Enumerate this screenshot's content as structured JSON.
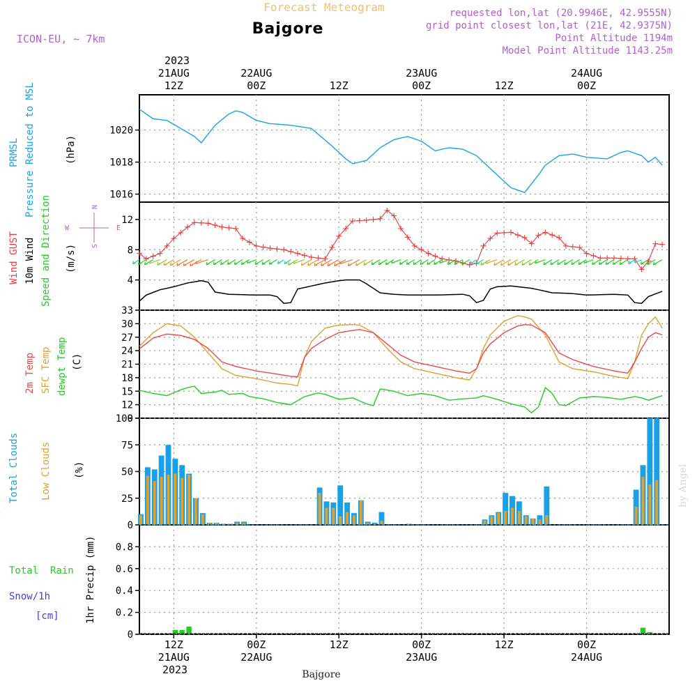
{
  "header": {
    "product": "Forecast Meteogram",
    "location": "Bajgore",
    "model": "ICON-EU, ~ 7km",
    "requested": "requested lon,lat (20.9946E, 42.9555N)",
    "grid_point": "grid point closest lon,lat (21E, 42.9375N)",
    "altitude": "Point Altitude 1194m",
    "model_altitude": "Model Point Altitude 1143.25m",
    "credit": "by Angel",
    "footer_location": "Bajgore"
  },
  "time_axis": {
    "top_year": "2023",
    "ticks": [
      {
        "h": 0,
        "day": "21AUG",
        "hour": "12Z"
      },
      {
        "h": 12,
        "day": "22AUG",
        "hour": "00Z"
      },
      {
        "h": 24,
        "day": "",
        "hour": "12Z"
      },
      {
        "h": 36,
        "day": "23AUG",
        "hour": "00Z"
      },
      {
        "h": 48,
        "day": "",
        "hour": "12Z"
      },
      {
        "h": 60,
        "day": "24AUG",
        "hour": "00Z"
      }
    ],
    "bottom_ticks": [
      {
        "h": 0,
        "hour": "12Z",
        "day": "21AUG"
      },
      {
        "h": 12,
        "hour": "00Z",
        "day": "22AUG"
      },
      {
        "h": 24,
        "hour": "12Z",
        "day": ""
      },
      {
        "h": 36,
        "hour": "00Z",
        "day": "23AUG"
      },
      {
        "h": 48,
        "hour": "12Z",
        "day": ""
      },
      {
        "h": 60,
        "hour": "00Z",
        "day": "24AUG"
      }
    ],
    "bottom_year": "2023",
    "start_hour": -5,
    "end_hour": 71,
    "step_hours": 1
  },
  "labels": {
    "p1_a": "PRMSL",
    "p1_b": "Pressure Reduced to MSL",
    "p1_unit": "(hPa)",
    "p2_gust": "Wind GUST",
    "p2_wind": "10m Wind",
    "p2_dir": "Speed and Direction",
    "p2_unit": "(m/s)",
    "compass_n": "N",
    "compass_s": "S",
    "compass_e": "E",
    "compass_w": "W",
    "p3_t2m": "2m Temp",
    "p3_sfc": "SFC Temp",
    "p3_dew": "dewpt Temp",
    "p3_unit": "(C)",
    "p4_total": "Total Clouds",
    "p4_low": "Low Clouds",
    "p4_unit": "(%)",
    "p5_rain": "Total  Rain",
    "p5_snow": "Snow/1h",
    "p5_snow_unit": "[cm]",
    "p5_axis": "1hr Precip (mm)"
  },
  "colors": {
    "pressure": "#1aa0e6",
    "gust": "#e83c3c",
    "wind": "#000000",
    "t2m": "#e84848",
    "sfc": "#e0a030",
    "dew": "#22cc22",
    "total_clouds": "#1aa0e6",
    "low_clouds": "#e0a030",
    "rain": "#22cc22",
    "snow": "#4040e0",
    "model_text": "#b060d0",
    "product_text": "#f0c070"
  },
  "chart_data": [
    {
      "type": "line",
      "name": "pressure",
      "ylim": [
        1015.5,
        1022.2
      ],
      "yticks": [
        1016,
        1018,
        1020
      ],
      "knots": [
        [
          -5,
          1021.3
        ],
        [
          -3,
          1020.7
        ],
        [
          -1,
          1020.6
        ],
        [
          1,
          1020.1
        ],
        [
          3,
          1019.6
        ],
        [
          4,
          1019.2
        ],
        [
          6,
          1020.3
        ],
        [
          8,
          1021.0
        ],
        [
          9,
          1021.2
        ],
        [
          10,
          1021.1
        ],
        [
          12,
          1020.6
        ],
        [
          14,
          1020.4
        ],
        [
          17,
          1020.3
        ],
        [
          20,
          1020.1
        ],
        [
          23,
          1019.0
        ],
        [
          25,
          1018.2
        ],
        [
          26,
          1017.9
        ],
        [
          28,
          1018.1
        ],
        [
          30,
          1018.9
        ],
        [
          32,
          1019.4
        ],
        [
          34,
          1019.6
        ],
        [
          36,
          1019.3
        ],
        [
          38,
          1018.7
        ],
        [
          40,
          1018.9
        ],
        [
          42,
          1018.8
        ],
        [
          44,
          1018.4
        ],
        [
          46,
          1017.6
        ],
        [
          48,
          1016.8
        ],
        [
          49,
          1016.4
        ],
        [
          51,
          1016.1
        ],
        [
          53,
          1017.2
        ],
        [
          54,
          1017.8
        ],
        [
          56,
          1018.4
        ],
        [
          58,
          1018.5
        ],
        [
          60,
          1018.3
        ],
        [
          63,
          1018.2
        ],
        [
          65,
          1018.6
        ],
        [
          66,
          1018.7
        ],
        [
          68,
          1018.4
        ],
        [
          69,
          1018.0
        ],
        [
          70,
          1018.3
        ],
        [
          71,
          1017.8
        ]
      ]
    },
    {
      "type": "line",
      "name": "wind_gust_and_speed",
      "ylim": [
        0,
        14.3
      ],
      "yticks": [
        4,
        8,
        12
      ],
      "gust_knots": [
        [
          -5,
          7.5
        ],
        [
          -4,
          6.8
        ],
        [
          -2,
          7.5
        ],
        [
          0,
          9.5
        ],
        [
          2,
          11.0
        ],
        [
          3,
          11.6
        ],
        [
          5,
          11.5
        ],
        [
          7,
          11.0
        ],
        [
          9,
          10.8
        ],
        [
          10,
          9.5
        ],
        [
          12,
          8.5
        ],
        [
          14,
          8.2
        ],
        [
          16,
          8.0
        ],
        [
          18,
          7.5
        ],
        [
          20,
          7.0
        ],
        [
          22,
          6.8
        ],
        [
          24,
          9.8
        ],
        [
          26,
          11.8
        ],
        [
          28,
          11.9
        ],
        [
          30,
          12.1
        ],
        [
          31,
          13.2
        ],
        [
          32,
          12.5
        ],
        [
          33,
          10.8
        ],
        [
          35,
          8.5
        ],
        [
          37,
          7.5
        ],
        [
          39,
          6.8
        ],
        [
          41,
          6.5
        ],
        [
          43,
          6.0
        ],
        [
          44,
          6.2
        ],
        [
          45,
          8.5
        ],
        [
          46,
          9.5
        ],
        [
          47,
          10.2
        ],
        [
          49,
          10.3
        ],
        [
          51,
          9.6
        ],
        [
          52,
          8.8
        ],
        [
          53,
          9.9
        ],
        [
          54,
          10.3
        ],
        [
          56,
          9.6
        ],
        [
          57,
          8.5
        ],
        [
          59,
          8.3
        ],
        [
          60,
          7.5
        ],
        [
          62,
          6.9
        ],
        [
          64,
          6.9
        ],
        [
          66,
          6.8
        ],
        [
          67,
          6.8
        ],
        [
          68,
          5.4
        ],
        [
          69,
          6.5
        ],
        [
          70,
          8.8
        ],
        [
          71,
          8.7
        ]
      ],
      "wind_knots": [
        [
          -5,
          1.2
        ],
        [
          -4,
          2.0
        ],
        [
          -2,
          2.7
        ],
        [
          0,
          3.1
        ],
        [
          2,
          3.6
        ],
        [
          4,
          3.9
        ],
        [
          5,
          3.7
        ],
        [
          6,
          2.4
        ],
        [
          8,
          2.1
        ],
        [
          12,
          2.0
        ],
        [
          14,
          2.0
        ],
        [
          15,
          1.8
        ],
        [
          16,
          0.9
        ],
        [
          17,
          1.0
        ],
        [
          18,
          2.8
        ],
        [
          20,
          3.2
        ],
        [
          22,
          3.6
        ],
        [
          24,
          3.9
        ],
        [
          25,
          4.0
        ],
        [
          27,
          4.0
        ],
        [
          28,
          3.5
        ],
        [
          30,
          2.3
        ],
        [
          32,
          2.1
        ],
        [
          34,
          2.0
        ],
        [
          38,
          2.0
        ],
        [
          42,
          2.1
        ],
        [
          43,
          1.9
        ],
        [
          44,
          1.0
        ],
        [
          45,
          1.3
        ],
        [
          46,
          2.8
        ],
        [
          47,
          3.1
        ],
        [
          49,
          3.2
        ],
        [
          52,
          2.9
        ],
        [
          55,
          2.3
        ],
        [
          58,
          2.2
        ],
        [
          60,
          2.0
        ],
        [
          64,
          2.1
        ],
        [
          66,
          2.0
        ],
        [
          67,
          1.0
        ],
        [
          68,
          0.9
        ],
        [
          69,
          1.8
        ],
        [
          71,
          2.5
        ]
      ]
    },
    {
      "type": "line",
      "name": "temperatures",
      "ylim": [
        9,
        33
      ],
      "yticks": [
        9,
        12,
        15,
        18,
        21,
        24,
        27,
        30,
        33
      ],
      "t2m_knots": [
        [
          -5,
          24.4
        ],
        [
          -3,
          26.8
        ],
        [
          -1,
          27.7
        ],
        [
          1,
          27.4
        ],
        [
          3,
          26.5
        ],
        [
          5,
          24.5
        ],
        [
          7,
          21.5
        ],
        [
          9,
          20.5
        ],
        [
          12,
          19.5
        ],
        [
          15,
          18.8
        ],
        [
          17,
          18.3
        ],
        [
          18,
          18.2
        ],
        [
          19,
          22.5
        ],
        [
          20,
          24.5
        ],
        [
          22,
          26.5
        ],
        [
          24,
          28.0
        ],
        [
          26,
          28.5
        ],
        [
          27,
          28.7
        ],
        [
          29,
          28.0
        ],
        [
          31,
          25.5
        ],
        [
          33,
          23.0
        ],
        [
          35,
          21.5
        ],
        [
          38,
          20.5
        ],
        [
          41,
          19.5
        ],
        [
          43,
          19.0
        ],
        [
          44,
          20.0
        ],
        [
          45,
          23.5
        ],
        [
          46,
          25.5
        ],
        [
          48,
          28.0
        ],
        [
          50,
          29.5
        ],
        [
          51,
          29.8
        ],
        [
          52,
          29.7
        ],
        [
          54,
          28.0
        ],
        [
          56,
          23.5
        ],
        [
          58,
          22.0
        ],
        [
          61,
          20.5
        ],
        [
          64,
          19.5
        ],
        [
          66,
          19.0
        ],
        [
          67,
          21.5
        ],
        [
          68,
          24.5
        ],
        [
          69,
          27.0
        ],
        [
          70,
          28.0
        ],
        [
          71,
          27.5
        ]
      ],
      "sfc_knots": [
        [
          -5,
          25.0
        ],
        [
          -3,
          28.0
        ],
        [
          -1,
          30.0
        ],
        [
          1,
          29.5
        ],
        [
          3,
          27.0
        ],
        [
          5,
          23.5
        ],
        [
          7,
          20.0
        ],
        [
          9,
          18.5
        ],
        [
          12,
          17.8
        ],
        [
          15,
          16.8
        ],
        [
          17,
          16.5
        ],
        [
          18,
          16.2
        ],
        [
          19,
          22.5
        ],
        [
          20,
          26.0
        ],
        [
          22,
          29.0
        ],
        [
          24,
          29.7
        ],
        [
          26,
          29.8
        ],
        [
          27,
          29.7
        ],
        [
          29,
          28.0
        ],
        [
          31,
          24.5
        ],
        [
          33,
          21.5
        ],
        [
          35,
          20.0
        ],
        [
          38,
          19.0
        ],
        [
          41,
          18.0
        ],
        [
          43,
          17.5
        ],
        [
          44,
          20.0
        ],
        [
          45,
          24.5
        ],
        [
          46,
          27.5
        ],
        [
          48,
          30.5
        ],
        [
          50,
          31.8
        ],
        [
          51,
          31.5
        ],
        [
          52,
          31.0
        ],
        [
          54,
          27.5
        ],
        [
          56,
          21.5
        ],
        [
          58,
          20.0
        ],
        [
          61,
          19.3
        ],
        [
          64,
          18.3
        ],
        [
          66,
          17.8
        ],
        [
          67,
          21.5
        ],
        [
          68,
          27.5
        ],
        [
          69,
          30.0
        ],
        [
          70,
          31.5
        ],
        [
          71,
          29.0
        ]
      ],
      "dew_knots": [
        [
          -5,
          15.2
        ],
        [
          -3,
          14.5
        ],
        [
          -1,
          14.0
        ],
        [
          1,
          15.3
        ],
        [
          2,
          15.8
        ],
        [
          3,
          16.1
        ],
        [
          4,
          14.5
        ],
        [
          6,
          14.8
        ],
        [
          7,
          15.2
        ],
        [
          8,
          14.3
        ],
        [
          10,
          14.5
        ],
        [
          11,
          13.8
        ],
        [
          13,
          13.3
        ],
        [
          15,
          12.5
        ],
        [
          17,
          12.0
        ],
        [
          19,
          13.8
        ],
        [
          21,
          14.6
        ],
        [
          22,
          14.3
        ],
        [
          24,
          13.2
        ],
        [
          26,
          13.5
        ],
        [
          28,
          12.2
        ],
        [
          29,
          11.8
        ],
        [
          30,
          15.5
        ],
        [
          32,
          15.0
        ],
        [
          34,
          14.0
        ],
        [
          36,
          14.5
        ],
        [
          38,
          14.0
        ],
        [
          40,
          13.0
        ],
        [
          42,
          13.3
        ],
        [
          44,
          13.5
        ],
        [
          45,
          14.0
        ],
        [
          47,
          13.2
        ],
        [
          49,
          12.2
        ],
        [
          51,
          11.5
        ],
        [
          52,
          10.2
        ],
        [
          53,
          11.5
        ],
        [
          54,
          15.8
        ],
        [
          55,
          14.5
        ],
        [
          56,
          12.0
        ],
        [
          57,
          11.8
        ],
        [
          59,
          13.5
        ],
        [
          61,
          13.8
        ],
        [
          63,
          13.6
        ],
        [
          65,
          13.2
        ],
        [
          67,
          13.8
        ],
        [
          68,
          13.5
        ],
        [
          69,
          13.0
        ],
        [
          71,
          14.0
        ]
      ]
    },
    {
      "type": "bar",
      "name": "clouds",
      "ylim": [
        0,
        100
      ],
      "yticks": [
        0,
        25,
        50,
        75,
        100
      ],
      "total": [
        10,
        54,
        52,
        65,
        75,
        62,
        56,
        48,
        25,
        11,
        2,
        2,
        1,
        1,
        3,
        3,
        0,
        0,
        0,
        0,
        0,
        0,
        0,
        0,
        0,
        0,
        35,
        22,
        21,
        37,
        21,
        11,
        23,
        3,
        2,
        12,
        0,
        0,
        0,
        1,
        0,
        0,
        0,
        0,
        0,
        0,
        0,
        0,
        0,
        0,
        5,
        9,
        12,
        30,
        27,
        22,
        9,
        6,
        9,
        36,
        0,
        0,
        0,
        0,
        0,
        0,
        0,
        0,
        0,
        0,
        0,
        0,
        33,
        56,
        100,
        100
      ],
      "low": [
        9,
        46,
        41,
        45,
        47,
        48,
        44,
        47,
        25,
        10,
        2,
        2,
        1,
        1,
        2,
        2,
        0,
        0,
        0,
        0,
        0,
        0,
        0,
        0,
        0,
        0,
        30,
        16,
        16,
        8,
        12,
        9,
        23,
        2,
        1,
        4,
        0,
        0,
        0,
        1,
        0,
        0,
        0,
        0,
        0,
        0,
        0,
        0,
        0,
        0,
        4,
        8,
        11,
        13,
        16,
        13,
        8,
        6,
        5,
        9,
        0,
        0,
        0,
        0,
        0,
        0,
        0,
        0,
        0,
        0,
        0,
        0,
        17,
        45,
        38,
        42
      ]
    },
    {
      "type": "bar",
      "name": "precipitation",
      "ylim": [
        0,
        1.0
      ],
      "yticks": [
        0,
        0.2,
        0.4,
        0.6,
        0.8
      ],
      "rain": [
        0,
        0,
        0,
        0,
        0,
        0.04,
        0.04,
        0.07,
        0,
        0,
        0,
        0,
        0,
        0,
        0,
        0,
        0,
        0,
        0,
        0,
        0,
        0,
        0,
        0,
        0,
        0,
        0,
        0,
        0,
        0,
        0,
        0,
        0,
        0,
        0,
        0,
        0,
        0,
        0,
        0,
        0,
        0,
        0,
        0,
        0,
        0,
        0,
        0,
        0,
        0,
        0,
        0,
        0,
        0,
        0,
        0,
        0,
        0,
        0,
        0,
        0,
        0,
        0,
        0,
        0,
        0,
        0,
        0,
        0,
        0,
        0,
        0,
        0,
        0.06,
        0.02,
        0
      ],
      "snow": []
    }
  ]
}
